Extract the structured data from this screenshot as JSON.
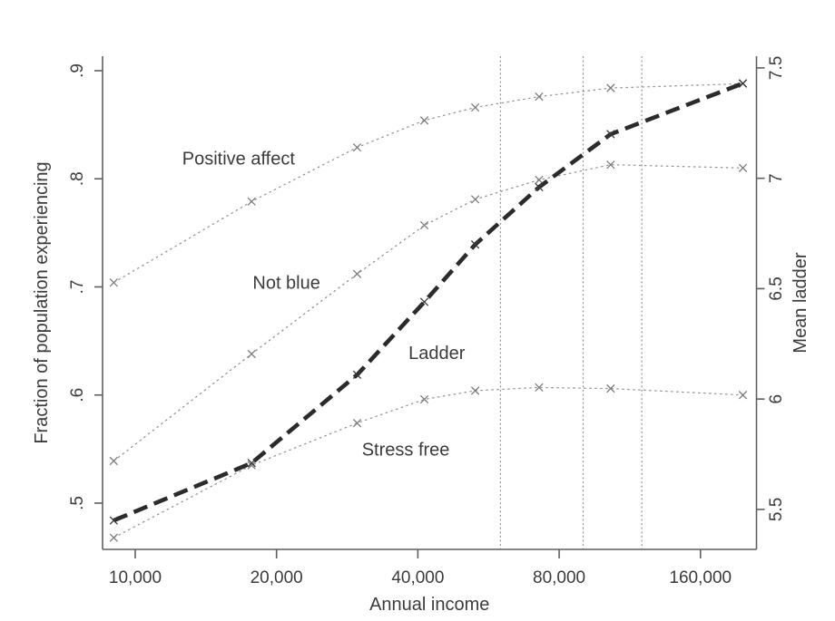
{
  "page": {
    "background_color": "#ffffff",
    "text_color": "#3b3b3b",
    "axis_color": "#5f5f5f",
    "thin_line_color": "#8f8f8f",
    "thick_line_color": "#2b2b2b",
    "marker_color": "#7d7d7d",
    "reference_line_color": "#8c8c8c"
  },
  "chart_data": {
    "type": "line",
    "title": "",
    "xlabel": "Annual income",
    "ylabel_left": "Fraction of population experiencing",
    "ylabel_right": "Mean ladder",
    "x_scale": "log",
    "x_range": [
      8520,
      210600
    ],
    "grid": false,
    "legend": "inline-labels",
    "x_ticks": [
      {
        "value": 10000,
        "label": "10,000"
      },
      {
        "value": 20000,
        "label": "20,000"
      },
      {
        "value": 40000,
        "label": "40,000"
      },
      {
        "value": 80000,
        "label": "80,000"
      },
      {
        "value": 160000,
        "label": "160,000"
      }
    ],
    "y_left": {
      "range": [
        0.4572,
        0.9134
      ],
      "ticks": [
        {
          "value": 0.5,
          "label": ".5"
        },
        {
          "value": 0.6,
          "label": ".6"
        },
        {
          "value": 0.7,
          "label": ".7"
        },
        {
          "value": 0.8,
          "label": ".8"
        },
        {
          "value": 0.9,
          "label": ".9"
        }
      ]
    },
    "y_right": {
      "range": [
        5.319,
        7.553
      ],
      "ticks": [
        {
          "value": 5.5,
          "label": "5.5"
        },
        {
          "value": 6.0,
          "label": "6"
        },
        {
          "value": 6.5,
          "label": "6.5"
        },
        {
          "value": 7.0,
          "label": "7"
        },
        {
          "value": 7.5,
          "label": "7.5"
        }
      ]
    },
    "reference_lines_x": [
      60000,
      90000,
      120000
    ],
    "x": [
      9000,
      17700,
      29700,
      41300,
      53000,
      72500,
      103000,
      197000
    ],
    "series": [
      {
        "name": "Positive affect",
        "axis": "left",
        "line": "thin-dotted",
        "marker": "x",
        "values": [
          0.704,
          0.779,
          0.829,
          0.854,
          0.866,
          0.876,
          0.884,
          0.888
        ],
        "label": {
          "text": "Positive affect",
          "x": 16600,
          "y": 0.819
        }
      },
      {
        "name": "Not blue",
        "axis": "left",
        "line": "thin-dotted",
        "marker": "x",
        "values": [
          0.539,
          0.638,
          0.712,
          0.757,
          0.781,
          0.799,
          0.813,
          0.81
        ],
        "label": {
          "text": "Not blue",
          "x": 21000,
          "y": 0.704
        }
      },
      {
        "name": "Ladder",
        "axis": "right",
        "line": "thick-dashed",
        "marker": "x",
        "values": [
          5.45,
          5.71,
          6.11,
          6.44,
          6.7,
          6.96,
          7.2,
          7.43
        ],
        "label": {
          "text": "Ladder",
          "x": 43900,
          "y": 6.21
        }
      },
      {
        "name": "Stress free",
        "axis": "left",
        "line": "thin-dotted",
        "marker": "x",
        "values": [
          0.468,
          0.535,
          0.574,
          0.596,
          0.604,
          0.607,
          0.606,
          0.6
        ],
        "label": {
          "text": "Stress free",
          "x": 37700,
          "y": 0.55
        }
      }
    ]
  }
}
